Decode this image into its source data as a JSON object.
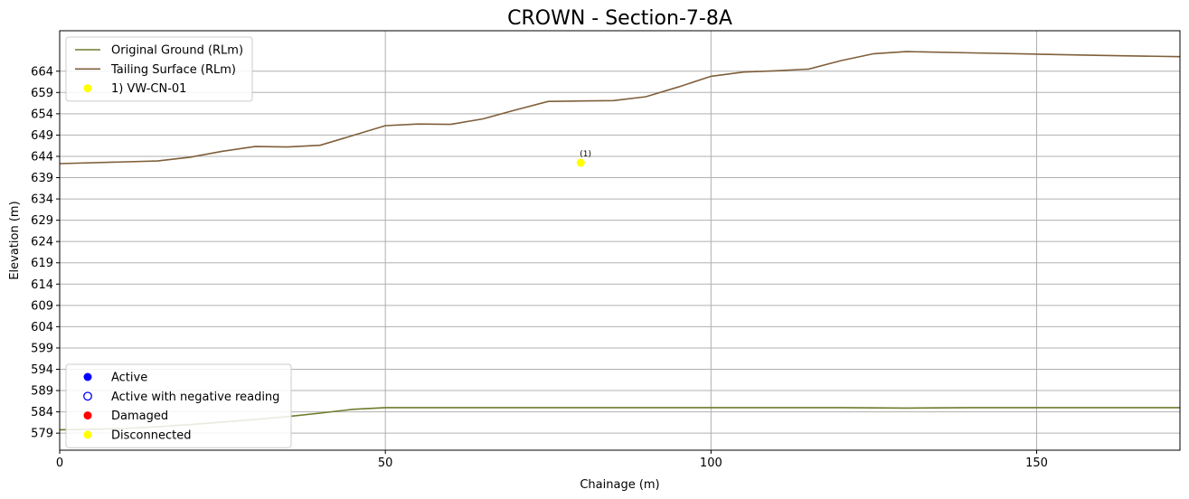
{
  "chart_data": {
    "type": "line",
    "title": "CROWN - Section-7-8A",
    "xlabel": "Chainage (m)",
    "ylabel": "Elevation (m)",
    "xlim": [
      0,
      172
    ],
    "ylim": [
      575,
      673.5
    ],
    "xticks": [
      0,
      50,
      100,
      150
    ],
    "yticks": [
      579,
      584,
      589,
      594,
      599,
      604,
      609,
      614,
      619,
      624,
      629,
      634,
      639,
      644,
      649,
      654,
      659,
      664
    ],
    "grid": true,
    "series": [
      {
        "name": "Original Ground (RLm)",
        "color": "#6f7a2b",
        "x": [
          0,
          5,
          10,
          15,
          20,
          25,
          30,
          35,
          40,
          45,
          50,
          60,
          80,
          100,
          120,
          130,
          140,
          160,
          172
        ],
        "y": [
          579.8,
          579.9,
          580.1,
          580.5,
          581.0,
          581.6,
          582.2,
          582.9,
          583.7,
          584.6,
          585.0,
          585.0,
          585.0,
          585.0,
          585.0,
          584.9,
          585.0,
          585.0,
          585.0
        ]
      },
      {
        "name": "Tailing Surface (RLm)",
        "color": "#7f5f3a",
        "x": [
          0,
          15,
          20,
          25,
          30,
          35,
          40,
          45,
          50,
          55,
          60,
          65,
          70,
          75,
          80,
          85,
          90,
          95,
          100,
          105,
          110,
          115,
          120,
          125,
          130,
          140,
          150,
          160,
          172
        ],
        "y": [
          642.3,
          642.9,
          643.8,
          645.2,
          646.3,
          646.2,
          646.6,
          648.9,
          651.2,
          651.6,
          651.5,
          652.8,
          654.9,
          656.9,
          657.0,
          657.1,
          658.0,
          660.3,
          662.8,
          663.8,
          664.1,
          664.5,
          666.5,
          668.1,
          668.6,
          668.3,
          668.0,
          667.7,
          667.4
        ]
      }
    ],
    "points": [
      {
        "name": "1) VW-CN-01",
        "x": 80,
        "y": 642.5,
        "color": "#ffff00",
        "label": "(1)"
      }
    ],
    "legend_top": {
      "placement": "upper-left",
      "entries": [
        {
          "label": "Original Ground (RLm)",
          "kind": "line",
          "color": "#6f7a2b"
        },
        {
          "label": "Tailing Surface (RLm)",
          "kind": "line",
          "color": "#7f5f3a"
        },
        {
          "label": "1) VW-CN-01",
          "kind": "dot",
          "color": "#ffff00"
        }
      ]
    },
    "legend_bottom": {
      "placement": "lower-left",
      "entries": [
        {
          "label": "Active",
          "kind": "dot",
          "color": "#0000ff"
        },
        {
          "label": "Active with negative reading",
          "kind": "ring",
          "color": "#0000ff"
        },
        {
          "label": "Damaged",
          "kind": "dot",
          "color": "#ff0000"
        },
        {
          "label": "Disconnected",
          "kind": "dot",
          "color": "#ffff00"
        }
      ]
    }
  }
}
